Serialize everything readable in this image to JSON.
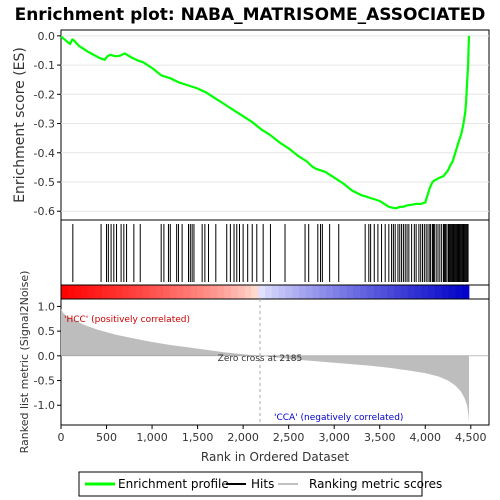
{
  "chart_data": {
    "type": "line",
    "title": "Enrichment plot: NABA_MATRISOME_ASSOCIATED",
    "xlabel": "Rank in Ordered Dataset",
    "xlim": [
      0,
      4700
    ],
    "x_ticks": [
      0,
      500,
      1000,
      1500,
      2000,
      2500,
      3000,
      3500,
      4000,
      4500
    ],
    "x_tick_labels": [
      "0",
      "500",
      "1,000",
      "1,500",
      "2,000",
      "2,500",
      "3,000",
      "3,500",
      "4,000",
      "4,500"
    ],
    "n_genes": 4480,
    "enrichment": {
      "ylabel": "Enrichment score (ES)",
      "ylim": [
        -0.63,
        0.02
      ],
      "y_ticks": [
        0.0,
        -0.1,
        -0.2,
        -0.3,
        -0.4,
        -0.5,
        -0.6
      ],
      "y_tick_labels": [
        "0.0",
        "-0.1",
        "-0.2",
        "-0.3",
        "-0.4",
        "-0.5",
        "-0.6"
      ],
      "color": "#00ff00",
      "series": [
        {
          "x": [
            0,
            60,
            100,
            125,
            140,
            200,
            300,
            420,
            480,
            510,
            540,
            600,
            650,
            700,
            780,
            850,
            900,
            1000,
            1100,
            1150,
            1200,
            1300,
            1400,
            1500,
            1600,
            1700,
            1800,
            1900,
            2000,
            2100,
            2200,
            2300,
            2400,
            2500,
            2600,
            2700,
            2750,
            2800,
            2900,
            3000,
            3100,
            3200,
            3300,
            3350,
            3380,
            3450,
            3500,
            3550,
            3600,
            3640,
            3680,
            3720,
            3760,
            3800,
            3850,
            3900,
            3950,
            4000,
            4020,
            4050,
            4080,
            4100,
            4130,
            4160,
            4200,
            4250,
            4280,
            4300,
            4320,
            4340,
            4360,
            4380,
            4400,
            4420,
            4440,
            4450,
            4460,
            4470,
            4475,
            4480
          ],
          "y": [
            -0.002,
            -0.018,
            -0.028,
            -0.012,
            -0.015,
            -0.035,
            -0.055,
            -0.075,
            -0.082,
            -0.07,
            -0.065,
            -0.07,
            -0.068,
            -0.06,
            -0.075,
            -0.085,
            -0.09,
            -0.11,
            -0.135,
            -0.14,
            -0.145,
            -0.16,
            -0.17,
            -0.18,
            -0.195,
            -0.215,
            -0.235,
            -0.255,
            -0.275,
            -0.295,
            -0.32,
            -0.34,
            -0.365,
            -0.385,
            -0.41,
            -0.43,
            -0.445,
            -0.455,
            -0.465,
            -0.485,
            -0.505,
            -0.53,
            -0.545,
            -0.55,
            -0.553,
            -0.56,
            -0.565,
            -0.575,
            -0.585,
            -0.588,
            -0.59,
            -0.585,
            -0.585,
            -0.58,
            -0.578,
            -0.575,
            -0.575,
            -0.57,
            -0.55,
            -0.52,
            -0.5,
            -0.495,
            -0.49,
            -0.485,
            -0.48,
            -0.46,
            -0.44,
            -0.43,
            -0.41,
            -0.39,
            -0.37,
            -0.35,
            -0.33,
            -0.3,
            -0.26,
            -0.22,
            -0.16,
            -0.1,
            -0.05,
            0.0
          ]
        }
      ]
    },
    "hits": {
      "label": "Hits",
      "positions": [
        130,
        440,
        500,
        520,
        550,
        580,
        610,
        660,
        690,
        720,
        800,
        870,
        1100,
        1130,
        1180,
        1200,
        1270,
        1290,
        1330,
        1400,
        1420,
        1440,
        1460,
        1550,
        1580,
        1620,
        1700,
        1820,
        1860,
        1900,
        1930,
        1960,
        2000,
        2050,
        2100,
        2150,
        2220,
        2300,
        2460,
        2680,
        2720,
        2820,
        2850,
        2870,
        2950,
        3050,
        3340,
        3380,
        3400,
        3440,
        3480,
        3520,
        3560,
        3600,
        3630,
        3650,
        3670,
        3700,
        3720,
        3740,
        3760,
        3780,
        3800,
        3820,
        3850,
        3880,
        3900,
        3930,
        3950,
        3970,
        3990,
        4010,
        4030,
        4050,
        4060,
        4080,
        4090,
        4100,
        4120,
        4140,
        4160,
        4180,
        4200,
        4210,
        4220,
        4230,
        4250,
        4260,
        4270,
        4280,
        4290,
        4300,
        4310,
        4320,
        4330,
        4340,
        4350,
        4360,
        4370,
        4380,
        4390,
        4400,
        4410,
        4420,
        4430,
        4440,
        4450,
        4460,
        4470
      ]
    },
    "ranked_metric": {
      "ylabel": "Ranked list metric (Signal2Noise)",
      "ylim": [
        -1.4,
        1.15
      ],
      "y_ticks": [
        1.0,
        0.5,
        0.0,
        -0.5,
        -1.0
      ],
      "y_tick_labels": [
        "1.0",
        "0.5",
        "0.0",
        "-0.5",
        "-1.0"
      ],
      "x": [
        0,
        30,
        80,
        150,
        250,
        400,
        600,
        800,
        1000,
        1200,
        1400,
        1600,
        1800,
        2000,
        2185,
        2400,
        2600,
        2800,
        3000,
        3200,
        3400,
        3600,
        3800,
        4000,
        4150,
        4250,
        4330,
        4390,
        4430,
        4460,
        4475,
        4480
      ],
      "y": [
        0.95,
        0.85,
        0.78,
        0.72,
        0.63,
        0.53,
        0.43,
        0.35,
        0.28,
        0.22,
        0.17,
        0.12,
        0.07,
        0.03,
        0.0,
        -0.04,
        -0.08,
        -0.11,
        -0.14,
        -0.17,
        -0.2,
        -0.24,
        -0.29,
        -0.35,
        -0.42,
        -0.5,
        -0.6,
        -0.72,
        -0.85,
        -1.0,
        -1.2,
        -1.35
      ],
      "zero_cross_label": "Zero cross at 2185",
      "zero_cross_rank": 2185,
      "positive_label": "'HCC' (positively correlated)",
      "negative_label": "'CCA' (negatively correlated)"
    },
    "legend": {
      "placement": "bottom",
      "entries": [
        {
          "label": "Enrichment profile",
          "color": "#00ff00"
        },
        {
          "label": "Hits",
          "color": "#000000"
        },
        {
          "label": "Ranking metric scores",
          "color": "#c0c0c0"
        }
      ]
    }
  }
}
